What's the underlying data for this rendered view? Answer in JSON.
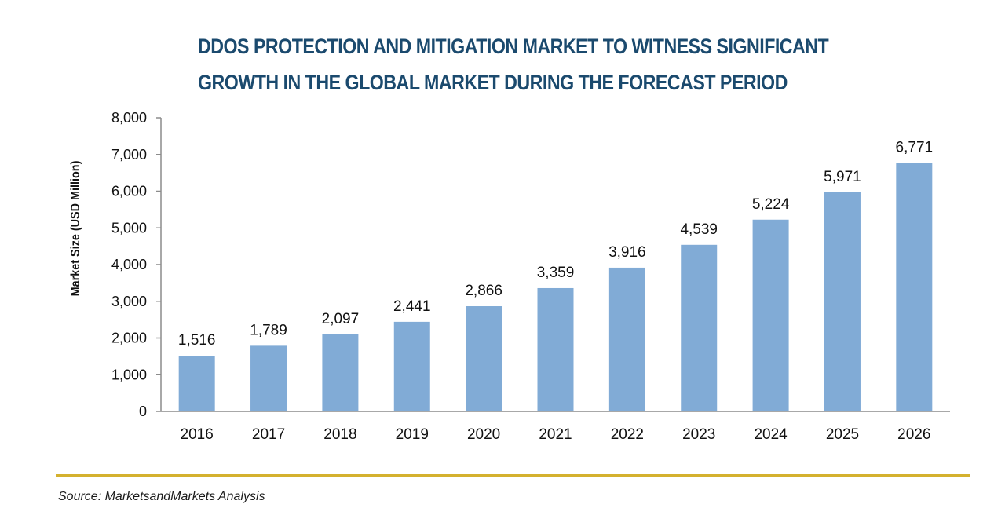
{
  "title_lines": [
    "DDOS PROTECTION AND MITIGATION MARKET TO WITNESS SIGNIFICANT",
    "GROWTH IN THE GLOBAL MARKET DURING THE FORECAST PERIOD"
  ],
  "source": "Source: MarketsandMarkets Analysis",
  "colors": {
    "title": "#1b4a6e",
    "bar": "#81abd6",
    "divider": "#d4b12e",
    "axis": "#8c8c8c"
  },
  "chart_data": {
    "type": "bar",
    "title": "DDOS PROTECTION AND MITIGATION MARKET TO WITNESS SIGNIFICANT GROWTH IN THE GLOBAL MARKET DURING THE FORECAST PERIOD",
    "xlabel": "",
    "ylabel": "Market Size (USD Million)",
    "categories": [
      "2016",
      "2017",
      "2018",
      "2019",
      "2020",
      "2021",
      "2022",
      "2023",
      "2024",
      "2025",
      "2026"
    ],
    "values": [
      1516,
      1789,
      2097,
      2441,
      2866,
      3359,
      3916,
      4539,
      5224,
      5971,
      6771
    ],
    "data_labels": [
      "1,516",
      "1,789",
      "2,097",
      "2,441",
      "2,866",
      "3,359",
      "3,916",
      "4,539",
      "5,224",
      "5,971",
      "6,771"
    ],
    "ylim": [
      0,
      8000
    ],
    "yticks": [
      0,
      1000,
      2000,
      3000,
      4000,
      5000,
      6000,
      7000,
      8000
    ],
    "ytick_labels": [
      "0",
      "1,000",
      "2,000",
      "3,000",
      "4,000",
      "5,000",
      "6,000",
      "7,000",
      "8,000"
    ],
    "grid": false,
    "legend": "none"
  }
}
